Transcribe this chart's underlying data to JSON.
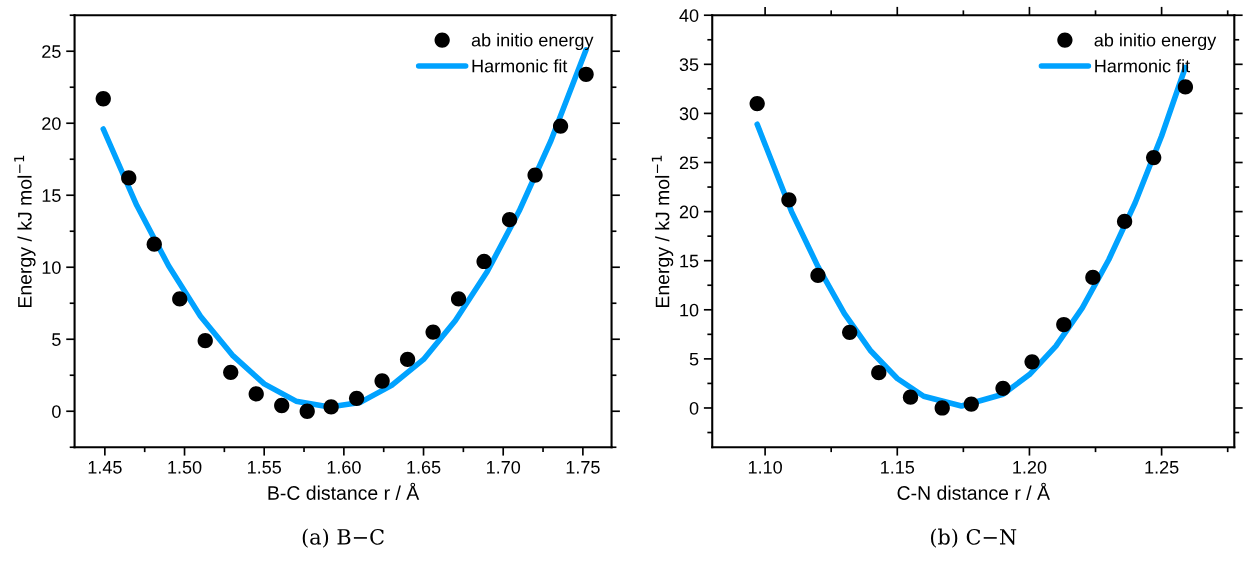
{
  "chart_data": [
    {
      "type": "scatter",
      "xlabel": "B-C distance r / Å",
      "ylabel": "Energy / kJ mol$^{−1}$",
      "xlim": [
        1.431,
        1.768
      ],
      "xticks": [
        1.45,
        {
          "value": 1.5,
          "label": "1.50"
        },
        1.55,
        {
          "value": 1.6,
          "label": "1.60"
        },
        1.65,
        {
          "value": 1.7,
          "label": "1.70"
        },
        1.75
      ],
      "ylim": [
        -2.5,
        27.5
      ],
      "yticks": [
        0,
        5,
        10,
        15,
        20,
        25
      ],
      "legend": "top right",
      "annotations": [
        "(a) B−C"
      ],
      "series": [
        {
          "name": "ab initio energy",
          "marker": "circle",
          "color": "#000000",
          "x": [
            1.449,
            1.465,
            1.481,
            1.497,
            1.513,
            1.529,
            1.545,
            1.561,
            1.577,
            1.592,
            1.608,
            1.624,
            1.64,
            1.656,
            1.672,
            1.688,
            1.704,
            1.72,
            1.736,
            1.752
          ],
          "values": [
            21.7,
            16.2,
            11.6,
            7.8,
            4.9,
            2.7,
            1.2,
            0.4,
            0,
            0.3,
            0.9,
            2.1,
            3.6,
            5.5,
            7.8,
            10.4,
            13.3,
            16.4,
            19.8,
            23.4
          ]
        },
        {
          "name": "Harmonic fit",
          "type": "line",
          "color": "#00a2ff",
          "x": [
            1.449,
            1.47,
            1.49,
            1.51,
            1.53,
            1.55,
            1.57,
            1.591,
            1.61,
            1.63,
            1.65,
            1.67,
            1.69,
            1.71,
            1.73,
            1.752
          ],
          "values": [
            19.6,
            14.3,
            10.1,
            6.6,
            3.9,
            1.9,
            0.7,
            0.3,
            0.6,
            1.8,
            3.6,
            6.3,
            9.7,
            13.9,
            18.8,
            25.1
          ]
        }
      ]
    },
    {
      "type": "scatter",
      "xlabel": "C-N distance r / Å",
      "ylabel": "Energy / kJ mol$^{−1}$",
      "xlim": [
        1.08,
        1.2775
      ],
      "xticks": [
        {
          "value": 1.1,
          "label": "1.10"
        },
        1.15,
        {
          "value": 1.2,
          "label": "1.20"
        },
        1.25
      ],
      "ylim": [
        -4,
        40
      ],
      "yticks": [
        0,
        5,
        10,
        15,
        20,
        25,
        30,
        35,
        40
      ],
      "legend": "top right",
      "annotations": [
        "(b) C−N"
      ],
      "series": [
        {
          "name": "ab initio energy",
          "marker": "circle",
          "color": "#000000",
          "x": [
            1.097,
            1.109,
            1.12,
            1.132,
            1.143,
            1.155,
            1.167,
            1.178,
            1.19,
            1.201,
            1.213,
            1.224,
            1.236,
            1.247,
            1.259
          ],
          "values": [
            31.0,
            21.2,
            13.5,
            7.7,
            3.6,
            1.1,
            0,
            0.4,
            2.0,
            4.7,
            8.5,
            13.3,
            19.0,
            25.5,
            32.7
          ]
        },
        {
          "name": "Harmonic fit",
          "type": "line",
          "color": "#00a2ff",
          "x": [
            1.097,
            1.11,
            1.12,
            1.13,
            1.14,
            1.15,
            1.16,
            1.1743,
            1.19,
            1.2,
            1.21,
            1.22,
            1.23,
            1.24,
            1.25,
            1.259
          ],
          "values": [
            28.9,
            20.0,
            14.4,
            9.6,
            5.8,
            3.0,
            1.2,
            0.2,
            1.4,
            3.4,
            6.3,
            10.2,
            15.1,
            20.9,
            27.7,
            34.7
          ]
        }
      ]
    }
  ]
}
